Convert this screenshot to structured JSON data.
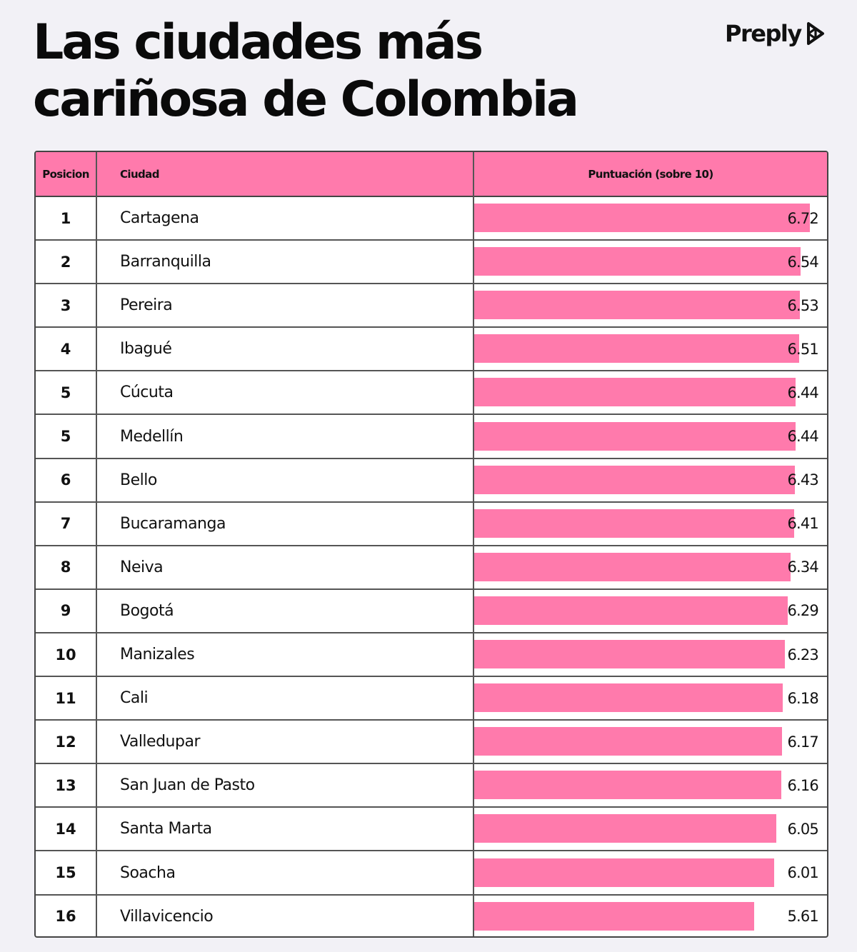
{
  "title": {
    "line1": "Las ciudades más",
    "line2": "cariñosa de Colombia"
  },
  "brand": {
    "name": "Preply",
    "icon": "preply-logo-icon"
  },
  "colors": {
    "accent": "#ff7aac",
    "background": "#f2f1f6",
    "text": "#111111"
  },
  "chart_data": {
    "type": "bar",
    "orientation": "horizontal",
    "title": "Las ciudades más cariñosa de Colombia",
    "columns": [
      "Posicion",
      "Ciudad",
      "Puntuación (sobre 10)"
    ],
    "xlim": [
      0,
      7.07
    ],
    "grid": false,
    "legend": "none",
    "positions": [
      "1",
      "2",
      "3",
      "4",
      "5",
      "5",
      "6",
      "7",
      "8",
      "9",
      "10",
      "11",
      "12",
      "13",
      "14",
      "15",
      "16"
    ],
    "categories": [
      "Cartagena",
      "Barranquilla",
      "Pereira",
      "Ibagué",
      "Cúcuta",
      "Medellín",
      "Bello",
      "Bucaramanga",
      "Neiva",
      "Bogotá",
      "Manizales",
      "Cali",
      "Valledupar",
      "San Juan de Pasto",
      "Santa Marta",
      "Soacha",
      "Villavicencio"
    ],
    "values": [
      6.72,
      6.54,
      6.53,
      6.51,
      6.44,
      6.44,
      6.43,
      6.41,
      6.34,
      6.29,
      6.23,
      6.18,
      6.17,
      6.16,
      6.05,
      6.01,
      5.61
    ],
    "value_labels": [
      "6.72",
      "6.54",
      "6.53",
      "6.51",
      "6.44",
      "6.44",
      "6.43",
      "6.41",
      "6.34",
      "6.29",
      "6.23",
      "6.18",
      "6.17",
      "6.16",
      "6.05",
      "6.01",
      "5.61"
    ]
  }
}
